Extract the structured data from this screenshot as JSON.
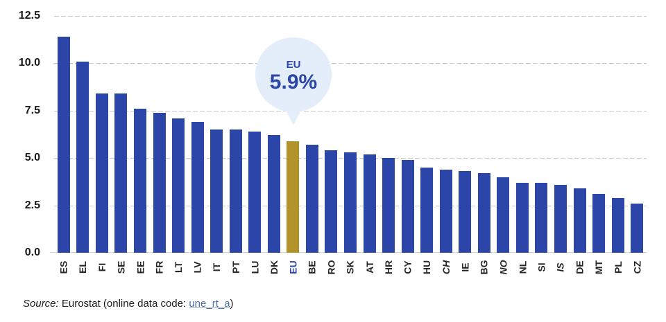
{
  "chart_data": {
    "type": "bar",
    "title": "",
    "xlabel": "",
    "ylabel": "",
    "categories": [
      "ES",
      "EL",
      "FI",
      "SE",
      "EE",
      "FR",
      "LT",
      "LV",
      "IT",
      "PT",
      "LU",
      "DK",
      "EU",
      "BE",
      "RO",
      "SK",
      "AT",
      "HR",
      "CY",
      "HU",
      "CH",
      "IE",
      "BG",
      "NO",
      "NL",
      "SI",
      "IS",
      "DE",
      "MT",
      "PL",
      "CZ"
    ],
    "values": [
      11.4,
      10.1,
      8.4,
      8.4,
      7.6,
      7.4,
      7.1,
      6.9,
      6.5,
      6.5,
      6.4,
      6.2,
      5.9,
      5.7,
      5.4,
      5.3,
      5.2,
      5.0,
      4.9,
      4.5,
      4.4,
      4.3,
      4.2,
      4.0,
      3.7,
      3.7,
      3.6,
      3.4,
      3.1,
      2.9,
      2.6
    ],
    "highlight_category": "EU",
    "italic_categories": [
      "CH",
      "NO",
      "IS"
    ],
    "y_tick_labels": [
      "0.0",
      "2.5",
      "5.0",
      "7.5",
      "10.0",
      "12.5"
    ],
    "y_tick_values": [
      0.0,
      2.5,
      5.0,
      7.5,
      10.0,
      12.5
    ],
    "ylim": [
      0,
      12.5
    ],
    "grid": "horizontal dashed gridlines, solid light baseline",
    "legend": "none",
    "colors": {
      "bar": "#2b46a8",
      "highlight_bar": "#b2932a",
      "gridline": "#c7c7c7",
      "axis_text": "#1a1a1a",
      "bubble_background": "#e4eefa",
      "bubble_text": "#2b46a8",
      "link": "#4a6fa5"
    }
  },
  "callout": {
    "label": "EU",
    "value": "5.9%"
  },
  "source": {
    "prefix": "Source:",
    "text": " Eurostat (online data code: ",
    "link_label": "une_rt_a",
    "suffix": ")"
  }
}
